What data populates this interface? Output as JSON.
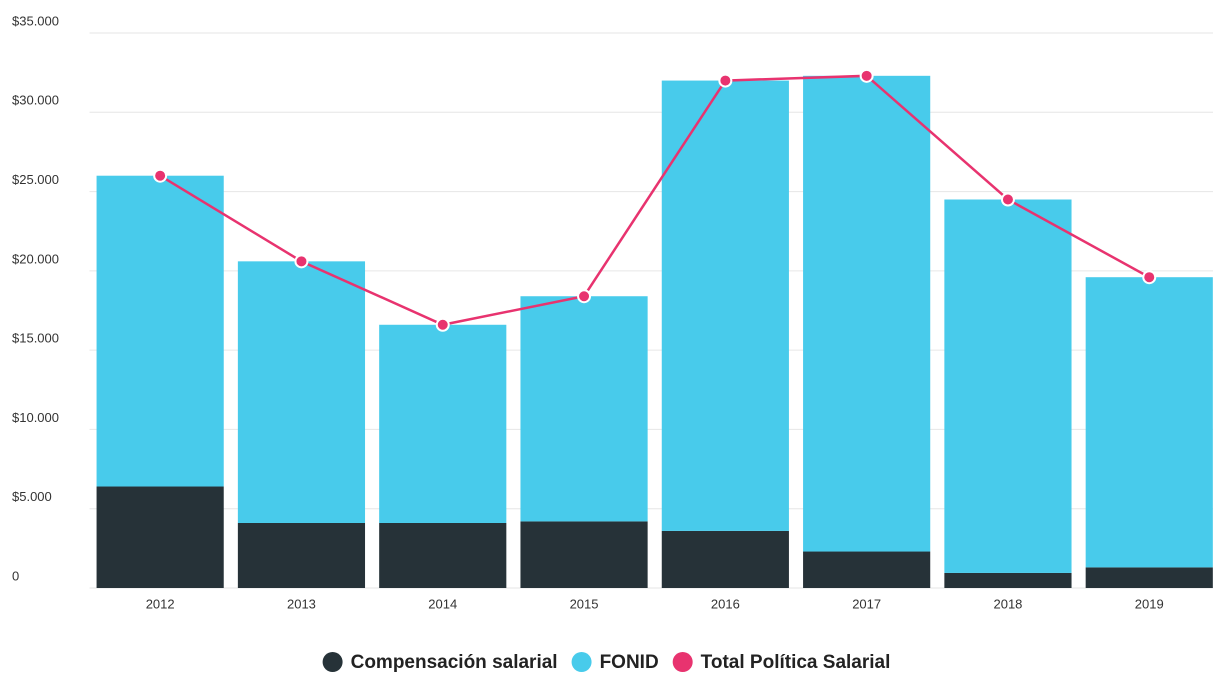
{
  "chart_data": {
    "type": "bar",
    "stacked": true,
    "categories": [
      "2012",
      "2013",
      "2014",
      "2015",
      "2016",
      "2017",
      "2018",
      "2019"
    ],
    "series": [
      {
        "name": "Compensación salarial",
        "color": "#263238",
        "values": [
          6400,
          4100,
          4100,
          4200,
          3600,
          2300,
          950,
          1300
        ]
      },
      {
        "name": "FONID",
        "color": "#48cbeb",
        "values": [
          19600,
          16500,
          12500,
          14200,
          28400,
          30000,
          23550,
          18300
        ]
      },
      {
        "name": "Total Política Salarial",
        "color": "#e8336f",
        "type": "line",
        "values": [
          26000,
          20600,
          16600,
          18400,
          32000,
          32300,
          24500,
          19600
        ]
      }
    ],
    "ylim": [
      0,
      35000
    ],
    "yticks": [
      0,
      {
        "value": 5000,
        "label": "$5.000"
      },
      {
        "value": 10000,
        "label": "$10.000"
      },
      {
        "value": 15000,
        "label": "$15.000"
      },
      {
        "value": 20000,
        "label": "$20.000"
      },
      {
        "value": 25000,
        "label": "$25.000"
      },
      {
        "value": 30000,
        "label": "$30.000"
      },
      {
        "value": 35000,
        "label": "$35.000"
      }
    ],
    "grid": true,
    "legend": "bottom"
  }
}
